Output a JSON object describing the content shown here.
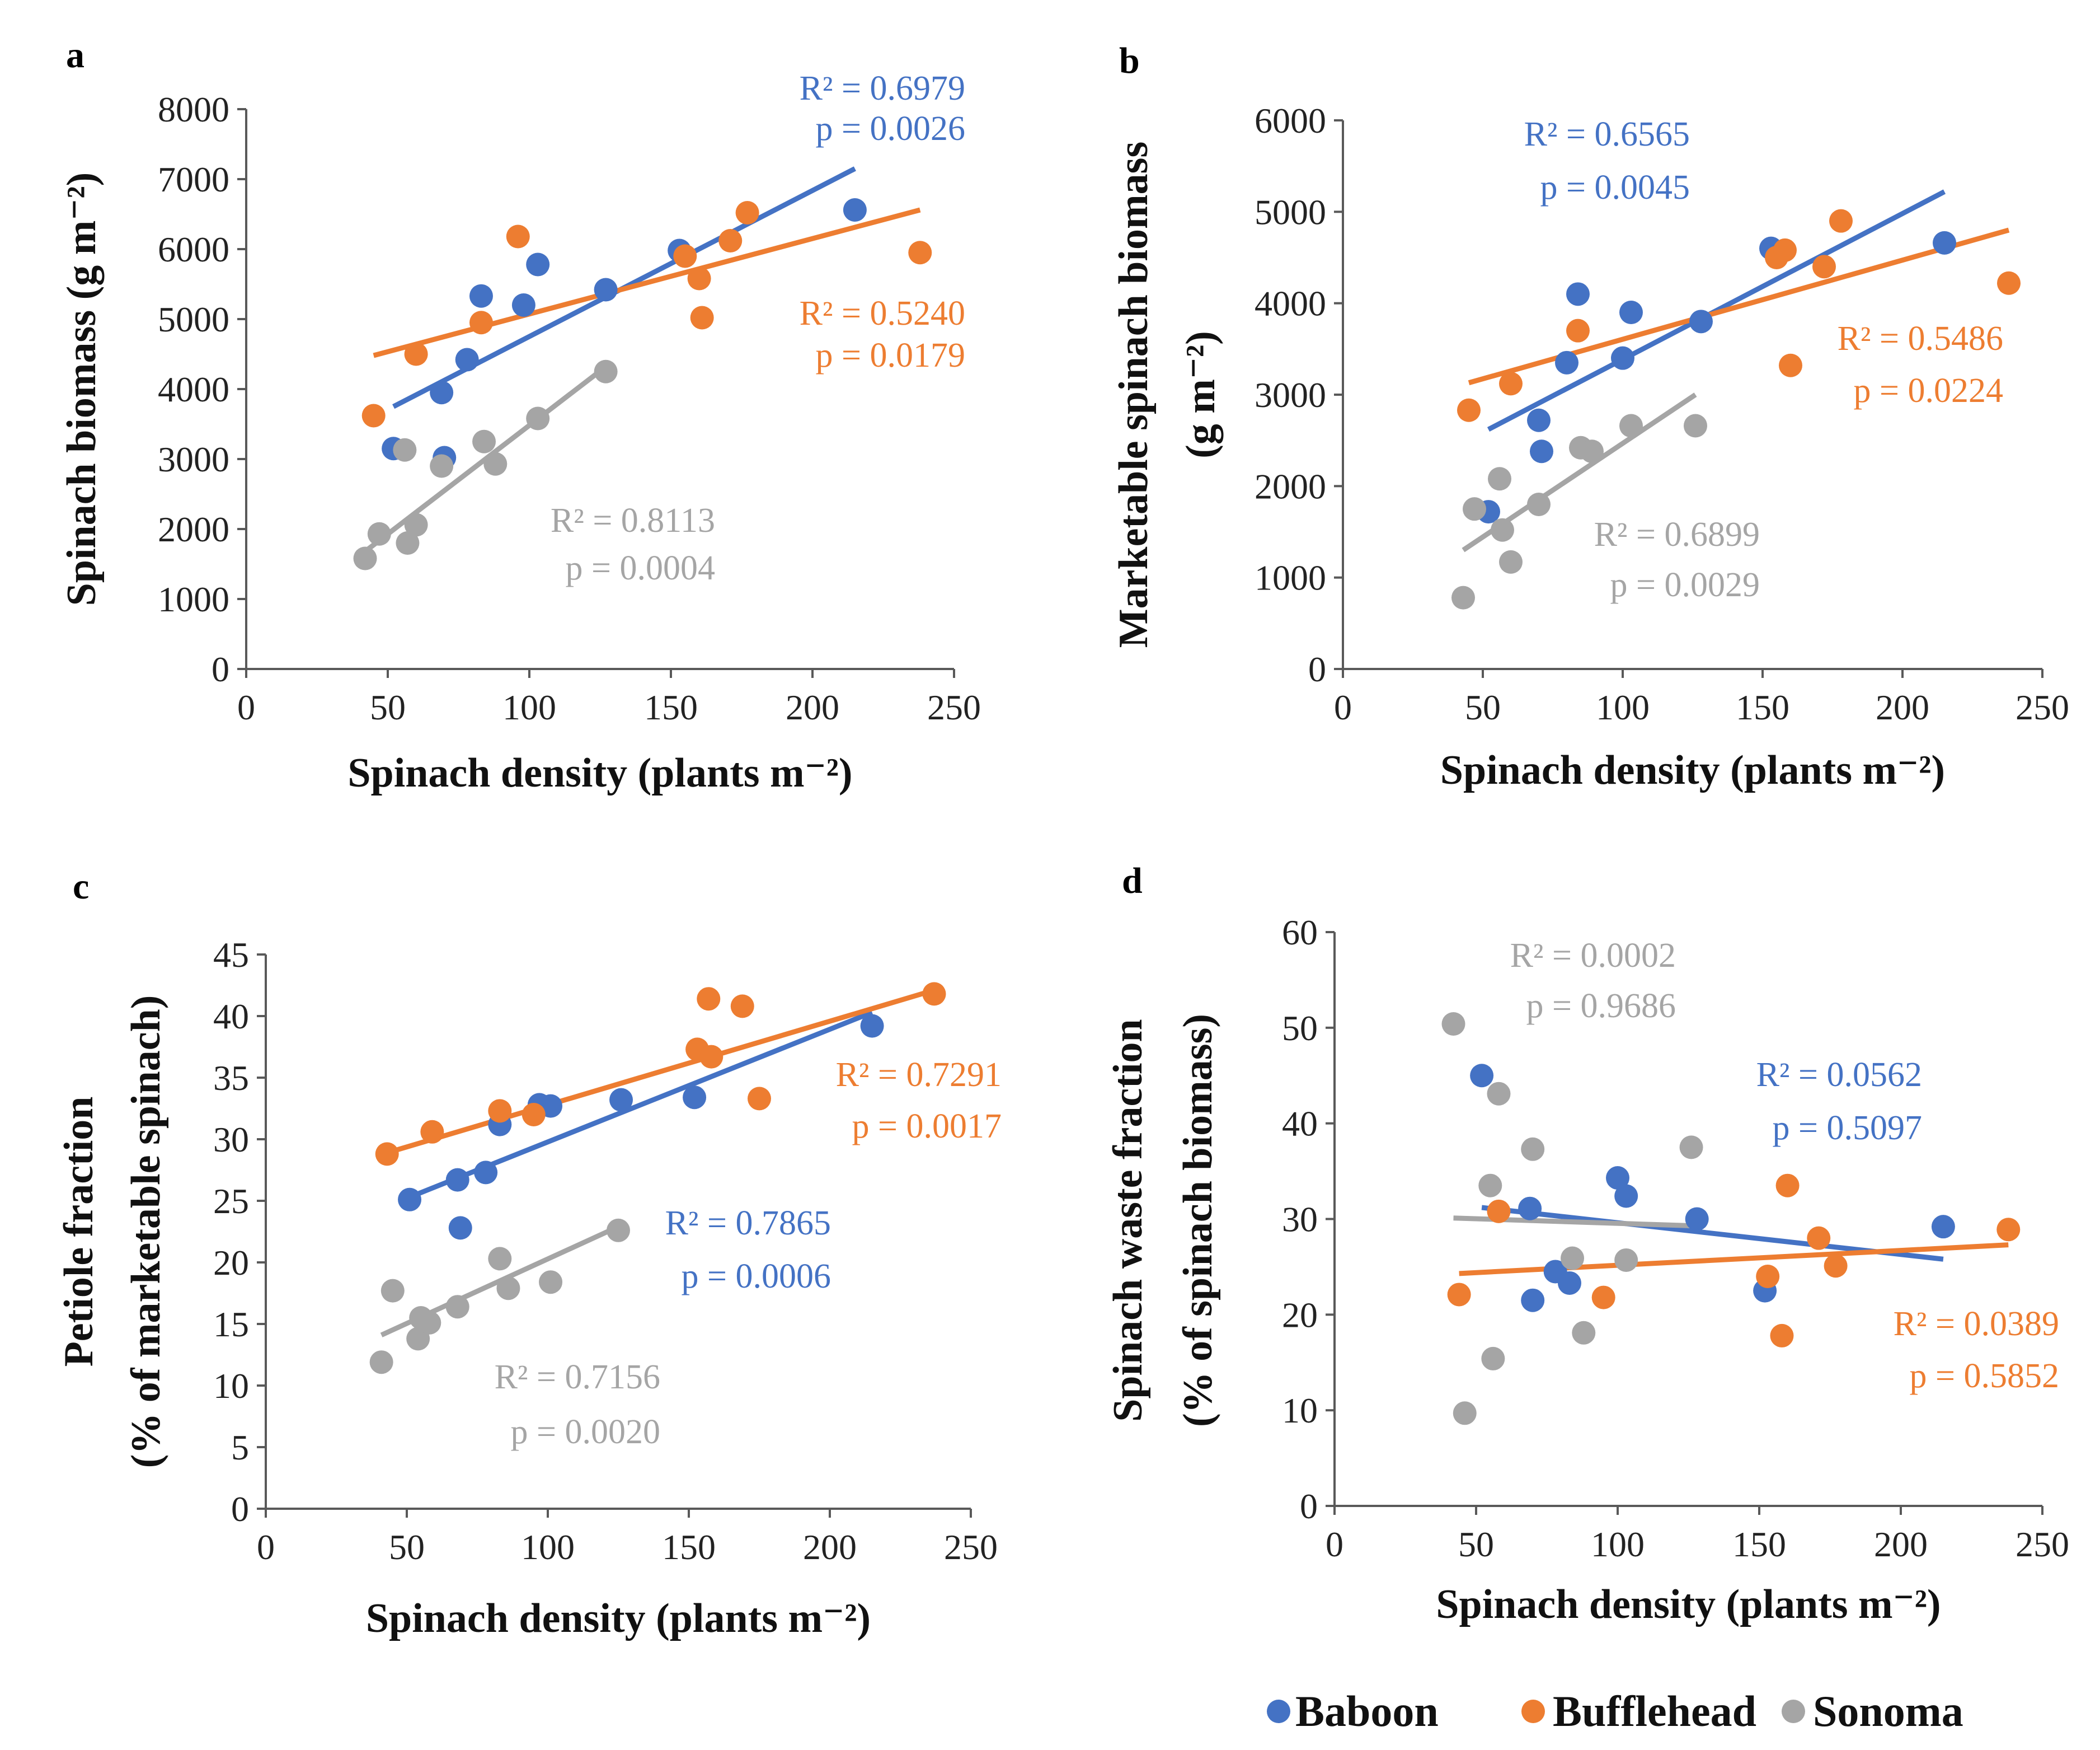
{
  "colors": {
    "Baboon": "#4472C4",
    "Bufflehead": "#ED7D31",
    "Sonoma": "#A5A5A5"
  },
  "legend": [
    {
      "name": "Baboon",
      "color": "#4472C4"
    },
    {
      "name": "Bufflehead",
      "color": "#ED7D31"
    },
    {
      "name": "Sonoma",
      "color": "#A5A5A5"
    }
  ],
  "chart_data": [
    {
      "type": "scatter",
      "panel": "a",
      "xlabel": "Spinach density (plants m⁻²)",
      "ylabel": [
        "Spinach biomass (g m⁻²)"
      ],
      "xlim": [
        0,
        250
      ],
      "ylim": [
        0,
        8000
      ],
      "xticks": [
        0,
        50,
        100,
        150,
        200,
        250
      ],
      "yticks": [
        0,
        1000,
        2000,
        3000,
        4000,
        5000,
        6000,
        7000,
        8000
      ],
      "series": [
        {
          "name": "Baboon",
          "points": [
            [
              52,
              3150
            ],
            [
              70,
              3020
            ],
            [
              69,
              3950
            ],
            [
              78,
              4420
            ],
            [
              83,
              5330
            ],
            [
              98,
              5200
            ],
            [
              103,
              5780
            ],
            [
              127,
              5420
            ],
            [
              153,
              5980
            ],
            [
              215,
              6560
            ]
          ],
          "trendline": [
            [
              52,
              3750
            ],
            [
              215,
              7150
            ]
          ],
          "r2_label": "R² = 0.6979",
          "p_label": "p = 0.0026"
        },
        {
          "name": "Bufflehead",
          "points": [
            [
              45,
              3620
            ],
            [
              60,
              4500
            ],
            [
              83,
              4950
            ],
            [
              96,
              6180
            ],
            [
              155,
              5900
            ],
            [
              160,
              5580
            ],
            [
              161,
              5020
            ],
            [
              171,
              6120
            ],
            [
              177,
              6520
            ],
            [
              238,
              5950
            ]
          ],
          "trendline": [
            [
              45,
              4480
            ],
            [
              238,
              6560
            ]
          ],
          "r2_label": "R² = 0.5240",
          "p_label": "p = 0.0179"
        },
        {
          "name": "Sonoma",
          "points": [
            [
              42,
              1580
            ],
            [
              47,
              1930
            ],
            [
              56,
              3130
            ],
            [
              57,
              1800
            ],
            [
              60,
              2060
            ],
            [
              69,
              2900
            ],
            [
              84,
              3250
            ],
            [
              88,
              2930
            ],
            [
              103,
              3580
            ],
            [
              127,
              4250
            ]
          ],
          "trendline": [
            [
              42,
              1680
            ],
            [
              127,
              4320
            ]
          ],
          "r2_label": "R² = 0.8113",
          "p_label": "p = 0.0004"
        }
      ]
    },
    {
      "type": "scatter",
      "panel": "b",
      "xlabel": "Spinach density (plants m⁻²)",
      "ylabel": [
        "Marketable spinach biomass",
        "(g m⁻²)"
      ],
      "xlim": [
        0,
        250
      ],
      "ylim": [
        0,
        6000
      ],
      "xticks": [
        0,
        50,
        100,
        150,
        200,
        250
      ],
      "yticks": [
        0,
        1000,
        2000,
        3000,
        4000,
        5000,
        6000
      ],
      "series": [
        {
          "name": "Baboon",
          "points": [
            [
              52,
              1720
            ],
            [
              70,
              2720
            ],
            [
              71,
              2380
            ],
            [
              80,
              3350
            ],
            [
              84,
              4100
            ],
            [
              100,
              3400
            ],
            [
              103,
              3900
            ],
            [
              128,
              3800
            ],
            [
              153,
              4600
            ],
            [
              215,
              4660
            ]
          ],
          "trendline": [
            [
              52,
              2620
            ],
            [
              215,
              5220
            ]
          ],
          "r2_label": "R² = 0.6565",
          "p_label": "p = 0.0045"
        },
        {
          "name": "Bufflehead",
          "points": [
            [
              45,
              2830
            ],
            [
              60,
              3120
            ],
            [
              84,
              3700
            ],
            [
              155,
              4500
            ],
            [
              158,
              4580
            ],
            [
              160,
              3320
            ],
            [
              172,
              4400
            ],
            [
              178,
              4900
            ],
            [
              238,
              4220
            ]
          ],
          "trendline": [
            [
              45,
              3130
            ],
            [
              238,
              4800
            ]
          ],
          "r2_label": "R² = 0.5486",
          "p_label": "p = 0.0224"
        },
        {
          "name": "Sonoma",
          "points": [
            [
              43,
              780
            ],
            [
              47,
              1750
            ],
            [
              56,
              2080
            ],
            [
              57,
              1520
            ],
            [
              60,
              1170
            ],
            [
              70,
              1800
            ],
            [
              85,
              2420
            ],
            [
              89,
              2380
            ],
            [
              103,
              2660
            ],
            [
              126,
              2660
            ]
          ],
          "trendline": [
            [
              43,
              1300
            ],
            [
              126,
              3000
            ]
          ],
          "r2_label": "R² = 0.6899",
          "p_label": "p = 0.0029"
        }
      ]
    },
    {
      "type": "scatter",
      "panel": "c",
      "xlabel": "Spinach density (plants m⁻²)",
      "ylabel": [
        "Petiole fraction",
        "(% of marketable spinach)"
      ],
      "xlim": [
        0,
        250
      ],
      "ylim": [
        0,
        45
      ],
      "xticks": [
        0,
        50,
        100,
        150,
        200,
        250
      ],
      "yticks": [
        0,
        5,
        10,
        15,
        20,
        25,
        30,
        35,
        40,
        45
      ],
      "series": [
        {
          "name": "Baboon",
          "points": [
            [
              51,
              25.1
            ],
            [
              68,
              26.7
            ],
            [
              69,
              22.8
            ],
            [
              78,
              27.3
            ],
            [
              83,
              31.2
            ],
            [
              97,
              32.8
            ],
            [
              101,
              32.7
            ],
            [
              126,
              33.2
            ],
            [
              152,
              33.4
            ],
            [
              215,
              39.2
            ]
          ],
          "trendline": [
            [
              51,
              25.3
            ],
            [
              215,
              40.3
            ]
          ],
          "r2_label": "R² = 0.7865",
          "p_label": "p = 0.0006"
        },
        {
          "name": "Bufflehead",
          "points": [
            [
              43,
              28.8
            ],
            [
              59,
              30.6
            ],
            [
              83,
              32.3
            ],
            [
              95,
              32.0
            ],
            [
              153,
              37.3
            ],
            [
              157,
              41.4
            ],
            [
              158,
              36.7
            ],
            [
              169,
              40.8
            ],
            [
              175,
              33.3
            ],
            [
              237,
              41.8
            ]
          ],
          "trendline": [
            [
              43,
              28.9
            ],
            [
              237,
              42.1
            ]
          ],
          "r2_label": "R² = 0.7291",
          "p_label": "p = 0.0017"
        },
        {
          "name": "Sonoma",
          "points": [
            [
              41,
              11.9
            ],
            [
              45,
              17.7
            ],
            [
              54,
              13.8
            ],
            [
              55,
              15.5
            ],
            [
              58,
              15.1
            ],
            [
              68,
              16.4
            ],
            [
              83,
              20.3
            ],
            [
              86,
              17.9
            ],
            [
              101,
              18.4
            ],
            [
              125,
              22.6
            ]
          ],
          "trendline": [
            [
              41,
              14.1
            ],
            [
              125,
              22.9
            ]
          ],
          "r2_label": "R² = 0.7156",
          "p_label": "p = 0.0020"
        }
      ]
    },
    {
      "type": "scatter",
      "panel": "d",
      "xlabel": "Spinach density (plants m⁻²)",
      "ylabel": [
        "Spinach waste fraction",
        "(% of spinach biomass)"
      ],
      "xlim": [
        0,
        250
      ],
      "ylim": [
        0,
        60
      ],
      "xticks": [
        0,
        50,
        100,
        150,
        200,
        250
      ],
      "yticks": [
        0,
        10,
        20,
        30,
        40,
        50,
        60
      ],
      "series": [
        {
          "name": "Baboon",
          "points": [
            [
              52,
              45.0
            ],
            [
              69,
              31.1
            ],
            [
              70,
              21.5
            ],
            [
              78,
              24.5
            ],
            [
              83,
              23.3
            ],
            [
              100,
              34.3
            ],
            [
              103,
              32.4
            ],
            [
              128,
              30.0
            ],
            [
              152,
              22.5
            ],
            [
              215,
              29.2
            ]
          ],
          "trendline": [
            [
              52,
              31.2
            ],
            [
              215,
              25.8
            ]
          ],
          "r2_label": "R² = 0.0562",
          "p_label": "p = 0.5097"
        },
        {
          "name": "Bufflehead",
          "points": [
            [
              44,
              22.1
            ],
            [
              58,
              30.8
            ],
            [
              95,
              21.8
            ],
            [
              153,
              24.0
            ],
            [
              158,
              17.8
            ],
            [
              160,
              33.5
            ],
            [
              171,
              28.0
            ],
            [
              177,
              25.1
            ],
            [
              238,
              28.9
            ]
          ],
          "trendline": [
            [
              44,
              24.3
            ],
            [
              238,
              27.3
            ]
          ],
          "r2_label": "R² = 0.0389",
          "p_label": "p = 0.5852"
        },
        {
          "name": "Sonoma",
          "points": [
            [
              42,
              50.4
            ],
            [
              46,
              9.7
            ],
            [
              55,
              33.5
            ],
            [
              56,
              15.4
            ],
            [
              58,
              43.1
            ],
            [
              70,
              37.3
            ],
            [
              84,
              25.9
            ],
            [
              88,
              18.1
            ],
            [
              103,
              25.7
            ],
            [
              126,
              37.5
            ]
          ],
          "trendline": [
            [
              42,
              30.1
            ],
            [
              126,
              29.3
            ]
          ],
          "r2_label": "R² = 0.0002",
          "p_label": "p = 0.9686"
        }
      ]
    }
  ]
}
